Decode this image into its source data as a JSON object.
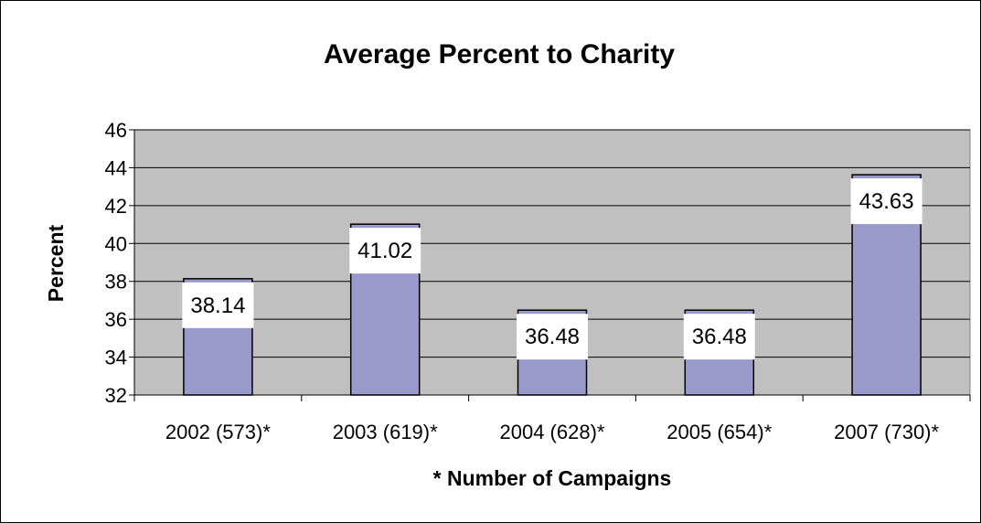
{
  "chart_data": {
    "type": "bar",
    "title": "Average Percent to Charity",
    "xlabel": "* Number of Campaigns",
    "ylabel": "Percent",
    "categories": [
      "2002 (573)*",
      "2003 (619)*",
      "2004 (628)*",
      "2005 (654)*",
      "2007 (730)*"
    ],
    "values": [
      38.14,
      41.02,
      36.48,
      36.48,
      43.63
    ],
    "data_labels": [
      "38.14",
      "41.02",
      "36.48",
      "36.48",
      "43.63"
    ],
    "ylim": [
      32,
      46
    ],
    "yticks": [
      32,
      34,
      36,
      38,
      40,
      42,
      44,
      46
    ],
    "grid": true,
    "legend": "none",
    "colors": {
      "bar_fill": "#9999cc",
      "plot_background": "#c0c0c0",
      "gridline": "#000000",
      "label_background": "#ffffff"
    }
  }
}
